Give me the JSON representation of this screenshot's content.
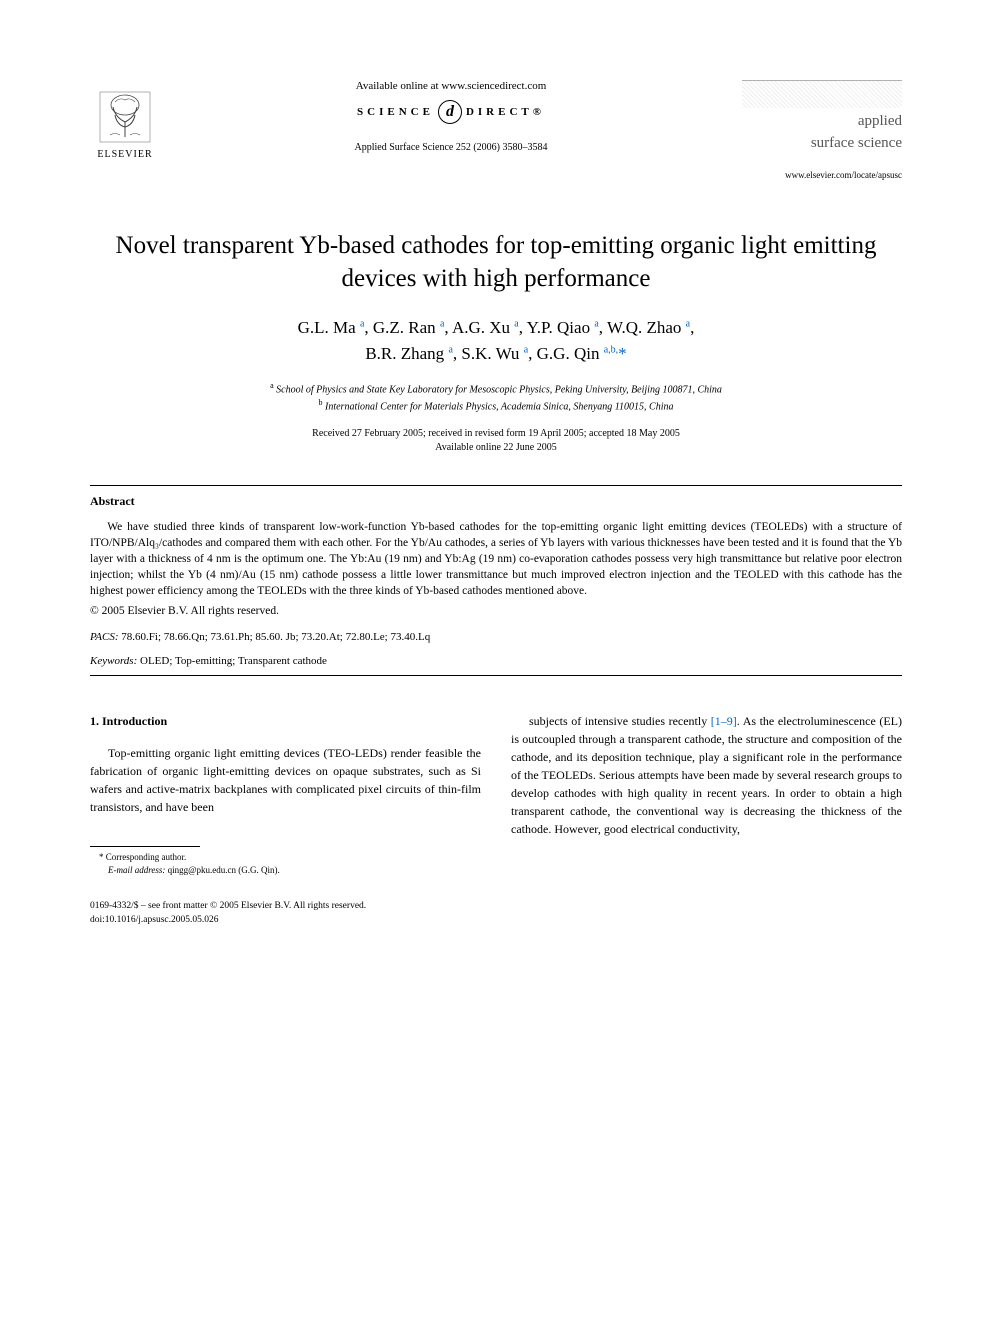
{
  "header": {
    "publisher_name": "ELSEVIER",
    "available_online": "Available online at www.sciencedirect.com",
    "science_left": "SCIENCE",
    "science_mid": "d",
    "science_right": "DIRECT®",
    "citation": "Applied Surface Science 252 (2006) 3580–3584",
    "journal_name_1": "applied",
    "journal_name_2": "surface science",
    "journal_url": "www.elsevier.com/locate/apsusc"
  },
  "title": "Novel transparent Yb-based cathodes for top-emitting organic light emitting devices with high performance",
  "authors_line1_parts": [
    {
      "name": "G.L. Ma",
      "sup": "a"
    },
    {
      "name": "G.Z. Ran",
      "sup": "a"
    },
    {
      "name": "A.G. Xu",
      "sup": "a"
    },
    {
      "name": "Y.P. Qiao",
      "sup": "a"
    },
    {
      "name": "W.Q. Zhao",
      "sup": "a"
    }
  ],
  "authors_line2_parts": [
    {
      "name": "B.R. Zhang",
      "sup": "a"
    },
    {
      "name": "S.K. Wu",
      "sup": "a"
    },
    {
      "name": "G.G. Qin",
      "sup": "a,b,",
      "star": "*"
    }
  ],
  "affiliations": {
    "a": "School of Physics and State Key Laboratory for Mesoscopic Physics, Peking University, Beijing 100871, China",
    "b": "International Center for Materials Physics, Academia Sinica, Shenyang 110015, China"
  },
  "dates_line1": "Received 27 February 2005; received in revised form 19 April 2005; accepted 18 May 2005",
  "dates_line2": "Available online 22 June 2005",
  "abstract": {
    "heading": "Abstract",
    "text": "We have studied three kinds of transparent low-work-function Yb-based cathodes for the top-emitting organic light emitting devices (TEOLEDs) with a structure of ITO/NPB/Alq₃/cathodes and compared them with each other. For the Yb/Au cathodes, a series of Yb layers with various thicknesses have been tested and it is found that the Yb layer with a thickness of 4 nm is the optimum one. The Yb:Au (19 nm) and Yb:Ag (19 nm) co-evaporation cathodes possess very high transmittance but relative poor electron injection; whilst the Yb (4 nm)/Au (15 nm) cathode possess a little lower transmittance but much improved electron injection and the TEOLED with this cathode has the highest power efficiency among the TEOLEDs with the three kinds of Yb-based cathodes mentioned above.",
    "copyright": "© 2005 Elsevier B.V. All rights reserved."
  },
  "pacs_label": "PACS:",
  "pacs_values": " 78.60.Fi; 78.66.Qn; 73.61.Ph; 85.60. Jb; 73.20.At; 72.80.Le; 73.40.Lq",
  "keywords_label": "Keywords:",
  "keywords_values": " OLED; Top-emitting; Transparent cathode",
  "section1": {
    "heading": "1. Introduction",
    "col1_text": "Top-emitting organic light emitting devices (TEO-LEDs) render feasible the fabrication of organic light-emitting devices on opaque substrates, such as Si wafers and active-matrix backplanes with complicated pixel circuits of thin-film transistors, and have been",
    "col2_text_before": "subjects of intensive studies recently ",
    "col2_cite": "[1–9]",
    "col2_text_after": ". As the electroluminescence (EL) is outcoupled through a transparent cathode, the structure and composition of the cathode, and its deposition technique, play a significant role in the performance of the TEOLEDs. Serious attempts have been made by several research groups to develop cathodes with high quality in recent years. In order to obtain a high transparent cathode, the conventional way is decreasing the thickness of the cathode. However, good electrical conductivity,"
  },
  "footnote": {
    "marker": "* Corresponding author.",
    "email_label": "E-mail address:",
    "email": " qingg@pku.edu.cn (G.G. Qin)."
  },
  "footer": {
    "line1": "0169-4332/$ – see front matter © 2005 Elsevier B.V. All rights reserved.",
    "line2": "doi:10.1016/j.apsusc.2005.05.026"
  }
}
